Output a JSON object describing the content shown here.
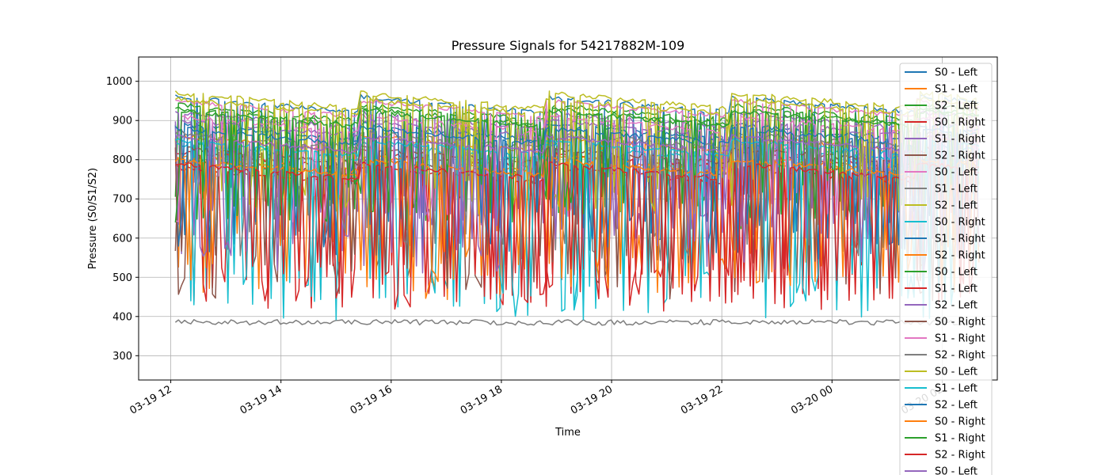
{
  "chart_data": {
    "type": "line",
    "title": "Pressure Signals for 54217882M-109",
    "xlabel": "Time",
    "ylabel": "Pressure (S0/S1/S2)",
    "xlim": [
      "2024-03-19 11:25",
      "2024-03-20 03:00"
    ],
    "ylim": [
      238,
      1062
    ],
    "grid": true,
    "legend_position": "top-right",
    "x_ticks": [
      {
        "value": "2024-03-19 12:00",
        "label": "03-19 12"
      },
      {
        "value": "2024-03-19 14:00",
        "label": "03-19 14"
      },
      {
        "value": "2024-03-19 16:00",
        "label": "03-19 16"
      },
      {
        "value": "2024-03-19 18:00",
        "label": "03-19 18"
      },
      {
        "value": "2024-03-19 20:00",
        "label": "03-19 20"
      },
      {
        "value": "2024-03-19 22:00",
        "label": "03-19 22"
      },
      {
        "value": "2024-03-20 00:00",
        "label": "03-20 00"
      },
      {
        "value": "2024-03-20 02:00",
        "label": "03-20 02"
      }
    ],
    "y_ticks": [
      300,
      400,
      500,
      600,
      700,
      800,
      900,
      1000
    ],
    "x_range_data": [
      "2024-03-19 12:05",
      "2024-03-20 02:40"
    ],
    "series": [
      {
        "name": "S0 - Left",
        "color": "#1f77b4",
        "level": 960,
        "drop": 760
      },
      {
        "name": "S1 - Left",
        "color": "#ff7f0e",
        "level": 860,
        "drop": 560
      },
      {
        "name": "S2 - Left",
        "color": "#2ca02c",
        "level": 940,
        "drop": 700
      },
      {
        "name": "S0 - Right",
        "color": "#d62728",
        "level": 820,
        "drop": 480
      },
      {
        "name": "S1 - Right",
        "color": "#9467bd",
        "level": 920,
        "drop": 620
      },
      {
        "name": "S2 - Right",
        "color": "#8c564b",
        "level": 800,
        "drop": 520
      },
      {
        "name": "S0 - Left",
        "color": "#e377c2",
        "level": 950,
        "drop": 700
      },
      {
        "name": "S1 - Left",
        "color": "#7f7f7f",
        "level": 385,
        "drop": 360
      },
      {
        "name": "S2 - Left",
        "color": "#bcbd22",
        "level": 970,
        "drop": 760
      },
      {
        "name": "S0 - Right",
        "color": "#17becf",
        "level": 840,
        "drop": 460
      },
      {
        "name": "S1 - Right",
        "color": "#1f77b4",
        "level": 890,
        "drop": 600
      },
      {
        "name": "S2 - Right",
        "color": "#ff7f0e",
        "level": 810,
        "drop": 500
      },
      {
        "name": "S0 - Left",
        "color": "#2ca02c",
        "level": 930,
        "drop": 680
      },
      {
        "name": "S1 - Left",
        "color": "#d62728",
        "level": 780,
        "drop": 480
      },
      {
        "name": "S2 - Left",
        "color": "#9467bd",
        "level": 900,
        "drop": 650
      },
      {
        "name": "S0 - Right",
        "color": "#8c564b",
        "level": 830,
        "drop": 500
      },
      {
        "name": "S1 - Right",
        "color": "#e377c2",
        "level": 910,
        "drop": 700
      },
      {
        "name": "S2 - Right",
        "color": "#7f7f7f",
        "level": 870,
        "drop": 600
      },
      {
        "name": "S0 - Left",
        "color": "#bcbd22",
        "level": 955,
        "drop": 720
      },
      {
        "name": "S1 - Left",
        "color": "#17becf",
        "level": 850,
        "drop": 450
      },
      {
        "name": "S2 - Left",
        "color": "#1f77b4",
        "level": 880,
        "drop": 620
      },
      {
        "name": "S0 - Right",
        "color": "#ff7f0e",
        "level": 800,
        "drop": 520
      },
      {
        "name": "S1 - Right",
        "color": "#2ca02c",
        "level": 925,
        "drop": 700
      },
      {
        "name": "S2 - Right",
        "color": "#d62728",
        "level": 790,
        "drop": 470
      },
      {
        "name": "S0 - Left",
        "color": "#9467bd",
        "level": 860,
        "drop": 560
      }
    ]
  }
}
